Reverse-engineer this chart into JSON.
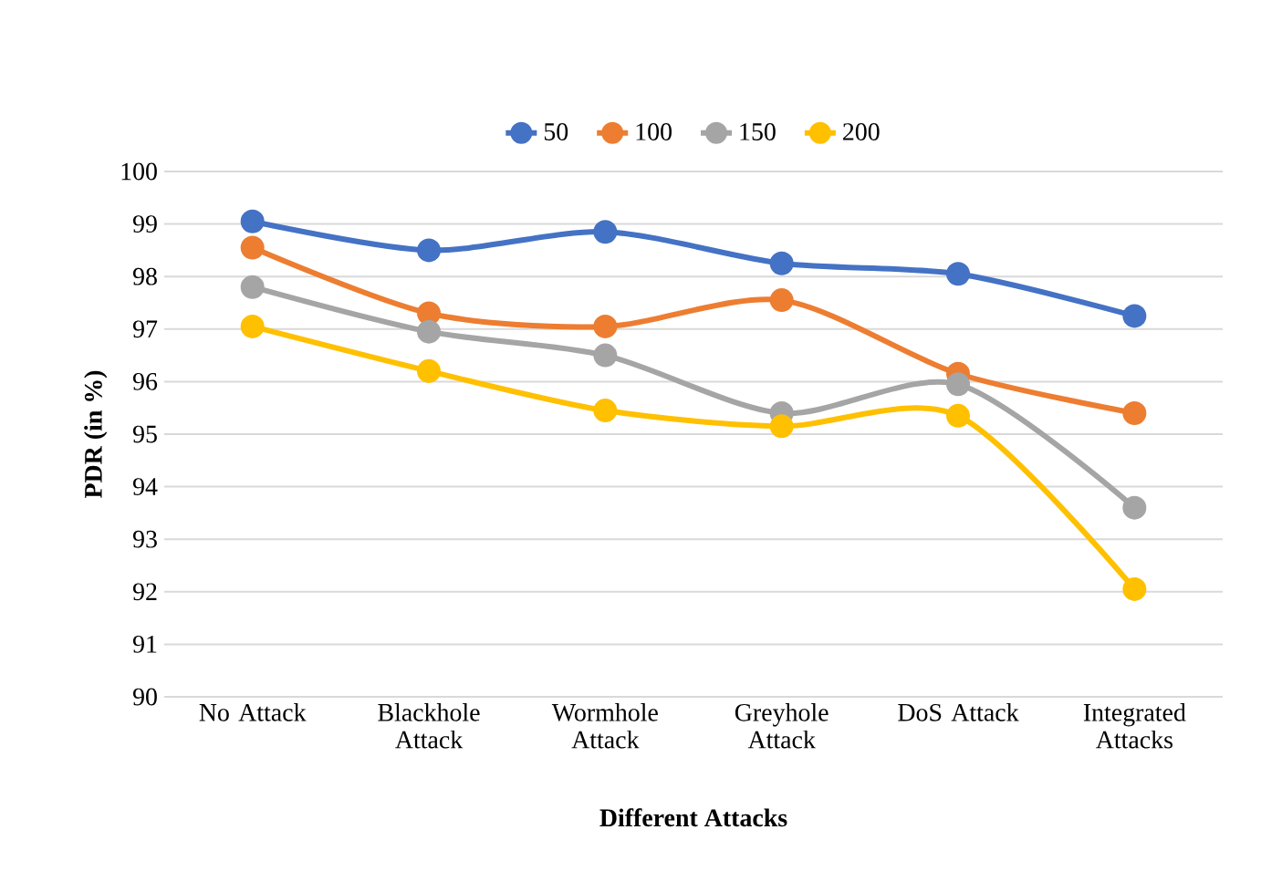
{
  "chart_data": {
    "type": "line",
    "xlabel": "Different Attacks",
    "ylabel": "PDR (in %)",
    "categories": [
      "No Attack",
      "Blackhole Attack",
      "Wormhole Attack",
      "Greyhole Attack",
      "DoS Attack",
      "Integrated Attacks"
    ],
    "series": [
      {
        "name": "50",
        "color": "#4472c4",
        "values": [
          99.05,
          98.5,
          98.85,
          98.25,
          98.05,
          97.25
        ]
      },
      {
        "name": "100",
        "color": "#ed7d31",
        "values": [
          98.55,
          97.3,
          97.05,
          97.55,
          96.15,
          95.4
        ]
      },
      {
        "name": "150",
        "color": "#a5a5a5",
        "values": [
          97.8,
          96.95,
          96.5,
          95.4,
          95.95,
          93.6
        ]
      },
      {
        "name": "200",
        "color": "#ffc000",
        "values": [
          97.05,
          96.2,
          95.45,
          95.15,
          95.35,
          92.05
        ]
      }
    ],
    "ylim": [
      90,
      100
    ],
    "yticks": [
      90,
      91,
      92,
      93,
      94,
      95,
      96,
      97,
      98,
      99,
      100
    ],
    "grid": "y",
    "legend": "top",
    "marker": "circle",
    "line_style": "solid"
  }
}
